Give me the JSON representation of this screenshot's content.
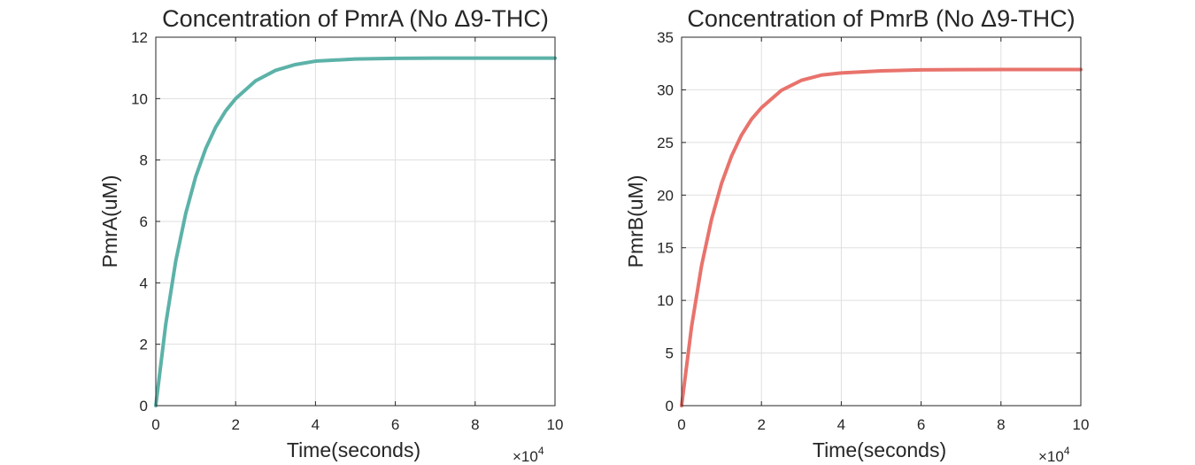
{
  "chart_data": [
    {
      "type": "line",
      "title": "Concentration of PmrA (No Δ9-THC)",
      "xlabel": "Time(seconds)",
      "ylabel": "PmrA(uM)",
      "x_exponent_label": "×10",
      "x_exponent_power": "4",
      "x_multiplier": 10000,
      "xlim": [
        0,
        10
      ],
      "ylim": [
        0,
        12
      ],
      "xticks": [
        0,
        2,
        4,
        6,
        8,
        10
      ],
      "yticks": [
        0,
        2,
        4,
        6,
        8,
        10,
        12
      ],
      "xtick_labels": [
        "0",
        "2",
        "4",
        "6",
        "8",
        "10"
      ],
      "ytick_labels": [
        "0",
        "2",
        "4",
        "6",
        "8",
        "10",
        "12"
      ],
      "grid": true,
      "color": "#5cb2a8",
      "series": [
        {
          "x": [
            0,
            0.25,
            0.5,
            0.75,
            1,
            1.25,
            1.5,
            1.75,
            2,
            2.5,
            3,
            3.5,
            4,
            5,
            6,
            7,
            8,
            9,
            10
          ],
          "y": [
            0,
            2.66,
            4.71,
            6.26,
            7.46,
            8.37,
            9.07,
            9.6,
            10.0,
            10.58,
            10.92,
            11.11,
            11.22,
            11.29,
            11.31,
            11.32,
            11.32,
            11.32,
            11.32
          ]
        }
      ]
    },
    {
      "type": "line",
      "title": "Concentration of PmrB (No Δ9-THC)",
      "xlabel": "Time(seconds)",
      "ylabel": "PmrB(uM)",
      "x_exponent_label": "×10",
      "x_exponent_power": "4",
      "x_multiplier": 10000,
      "xlim": [
        0,
        10
      ],
      "ylim": [
        0,
        35
      ],
      "xticks": [
        0,
        2,
        4,
        6,
        8,
        10
      ],
      "yticks": [
        0,
        5,
        10,
        15,
        20,
        25,
        30,
        35
      ],
      "xtick_labels": [
        "0",
        "2",
        "4",
        "6",
        "8",
        "10"
      ],
      "ytick_labels": [
        "0",
        "5",
        "10",
        "15",
        "20",
        "25",
        "30",
        "35"
      ],
      "grid": true,
      "color": "#e8736c",
      "series": [
        {
          "x": [
            0,
            0.25,
            0.5,
            0.75,
            1,
            1.25,
            1.5,
            1.75,
            2,
            2.5,
            3,
            3.5,
            4,
            5,
            6,
            7,
            8,
            9,
            10
          ],
          "y": [
            0,
            7.5,
            13.3,
            17.7,
            21.1,
            23.7,
            25.7,
            27.2,
            28.3,
            29.95,
            30.9,
            31.4,
            31.6,
            31.8,
            31.9,
            31.92,
            31.93,
            31.93,
            31.93
          ]
        }
      ]
    }
  ]
}
